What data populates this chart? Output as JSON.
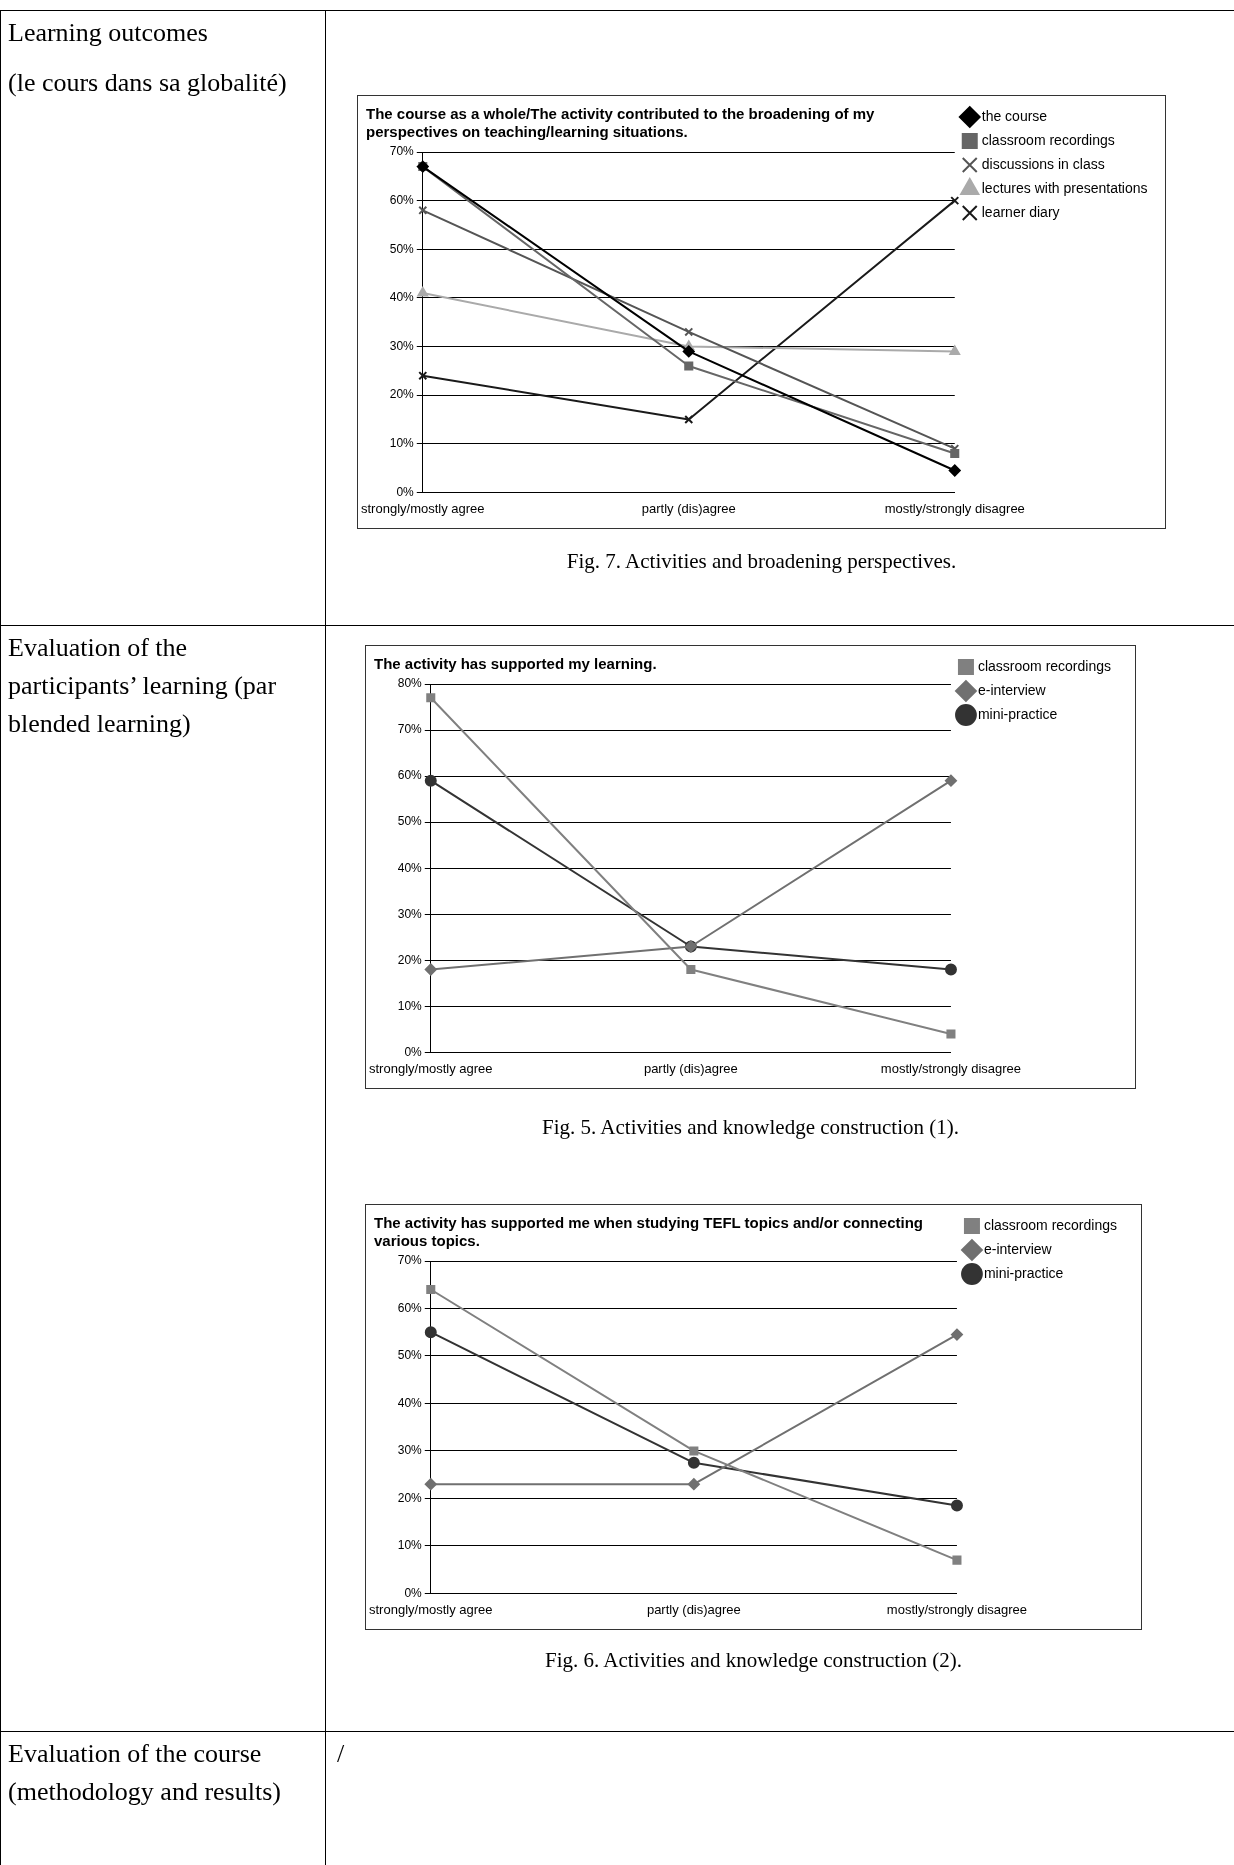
{
  "chart_data": [
    {
      "type": "line",
      "title": "The course as a whole/The activity contributed to the broadening of my perspectives on teaching/learning situations.",
      "categories": [
        "strongly/mostly agree",
        "partly (dis)agree",
        "mostly/strongly disagree"
      ],
      "series": [
        {
          "name": "the course",
          "color": "#000000",
          "marker": "diamond",
          "values": [
            67,
            29,
            4.5
          ]
        },
        {
          "name": "classroom recordings",
          "color": "#666666",
          "marker": "square",
          "values": [
            67,
            26,
            8
          ]
        },
        {
          "name": "discussions in class",
          "color": "#555555",
          "marker": "cross",
          "values": [
            58,
            33,
            9
          ]
        },
        {
          "name": "lectures with presentations",
          "color": "#aaaaaa",
          "marker": "triangle",
          "values": [
            41,
            30,
            29
          ]
        },
        {
          "name": "learner diary",
          "color": "#1a1a1a",
          "marker": "cross",
          "values": [
            24,
            15,
            60
          ]
        }
      ],
      "ylim": [
        0,
        70
      ],
      "yticks": [
        {
          "value": 0,
          "label": "0%"
        },
        {
          "value": 10,
          "label": "10%"
        },
        {
          "value": 20,
          "label": "20%"
        },
        {
          "value": 30,
          "label": "30%"
        },
        {
          "value": 40,
          "label": "40%"
        },
        {
          "value": 50,
          "label": "50%"
        },
        {
          "value": 60,
          "label": "60%"
        },
        {
          "value": 70,
          "label": "70%"
        }
      ],
      "grid": "y",
      "legend": "right",
      "annotations": [
        "Learning outcomes",
        "(le cours dans sa globalité)",
        "Fig. 7. Activities and broadening perspectives."
      ]
    },
    {
      "type": "line",
      "title": "The activity has supported my learning.",
      "categories": [
        "strongly/mostly agree",
        "partly (dis)agree",
        "mostly/strongly disagree"
      ],
      "series": [
        {
          "name": "classroom recordings",
          "color": "#808080",
          "marker": "square",
          "values": [
            77,
            18,
            4
          ]
        },
        {
          "name": "e-interview",
          "color": "#707070",
          "marker": "diamond",
          "values": [
            18,
            23,
            59
          ]
        },
        {
          "name": "mini-practice",
          "color": "#333333",
          "marker": "circle",
          "values": [
            59,
            23,
            18
          ]
        }
      ],
      "ylim": [
        0,
        80
      ],
      "yticks": [
        {
          "value": 0,
          "label": "0%"
        },
        {
          "value": 10,
          "label": "10%"
        },
        {
          "value": 20,
          "label": "20%"
        },
        {
          "value": 30,
          "label": "30%"
        },
        {
          "value": 40,
          "label": "40%"
        },
        {
          "value": 50,
          "label": "50%"
        },
        {
          "value": 60,
          "label": "60%"
        },
        {
          "value": 70,
          "label": "70%"
        },
        {
          "value": 80,
          "label": "80%"
        }
      ],
      "grid": "y",
      "legend": "right",
      "annotations": [
        "Evaluation of the participants’ learning (par blended learning)",
        "Fig. 5. Activities and knowledge construction (1)."
      ]
    },
    {
      "type": "line",
      "title": "The activity has supported me when studying TEFL topics and/or connecting various topics.",
      "categories": [
        "strongly/mostly agree",
        "partly (dis)agree",
        "mostly/strongly disagree"
      ],
      "series": [
        {
          "name": "classroom recordings",
          "color": "#808080",
          "marker": "square",
          "values": [
            64,
            30,
            7
          ]
        },
        {
          "name": "e-interview",
          "color": "#707070",
          "marker": "diamond",
          "values": [
            23,
            23,
            54.5
          ]
        },
        {
          "name": "mini-practice",
          "color": "#333333",
          "marker": "circle",
          "values": [
            55,
            27.5,
            18.5
          ]
        }
      ],
      "ylim": [
        0,
        70
      ],
      "yticks": [
        {
          "value": 0,
          "label": "0%"
        },
        {
          "value": 10,
          "label": "10%"
        },
        {
          "value": 20,
          "label": "20%"
        },
        {
          "value": 30,
          "label": "30%"
        },
        {
          "value": 40,
          "label": "40%"
        },
        {
          "value": 50,
          "label": "50%"
        },
        {
          "value": 60,
          "label": "60%"
        },
        {
          "value": 70,
          "label": "70%"
        }
      ],
      "grid": "y",
      "legend": "right",
      "annotations": [
        "Fig. 6. Activities and knowledge construction (2)."
      ]
    },
    {
      "type": "other",
      "annotations": [
        "Evaluation of the course (methodology and results)",
        "/"
      ]
    }
  ]
}
